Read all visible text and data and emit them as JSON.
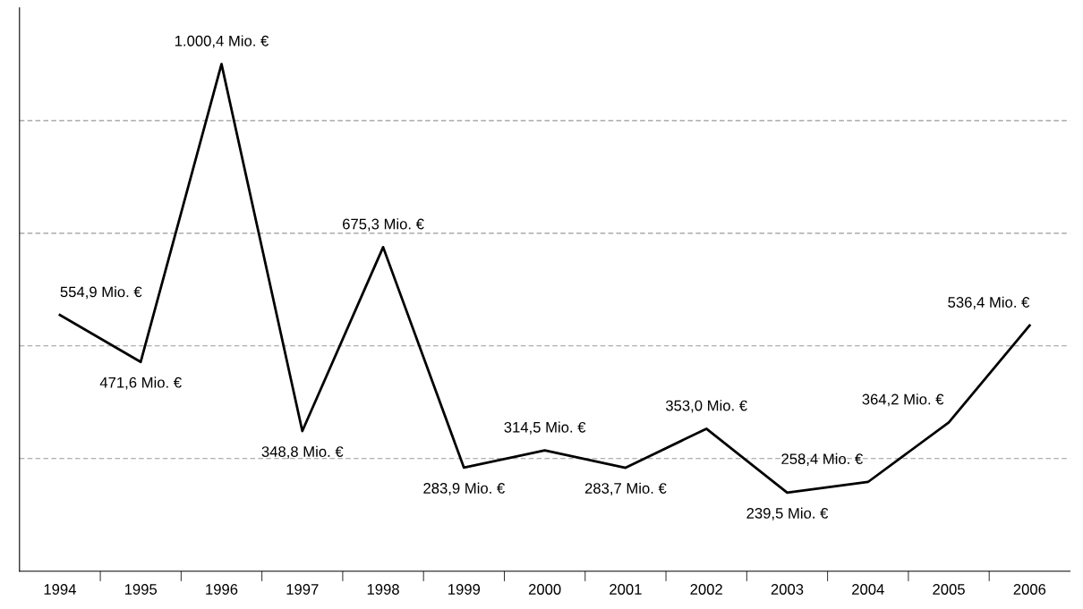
{
  "chart_data": {
    "type": "line",
    "categories": [
      "1994",
      "1995",
      "1996",
      "1997",
      "1998",
      "1999",
      "2000",
      "2001",
      "2002",
      "2003",
      "2004",
      "2005",
      "2006"
    ],
    "series": [
      {
        "color": "#000000",
        "values": [
          554.9,
          471.6,
          1000.4,
          348.8,
          675.3,
          283.9,
          314.5,
          283.7,
          353.0,
          239.5,
          258.4,
          364.2,
          536.4
        ],
        "value_labels": [
          "554,9 Mio. €",
          "471,6 Mio. €",
          "1.000,4 Mio. €",
          "348,8 Mio. €",
          "675,3 Mio. €",
          "283,9 Mio. €",
          "314,5 Mio. €",
          "283,7 Mio. €",
          "353,0 Mio. €",
          "239,5 Mio. €",
          "258,4 Mio. €",
          "364,2 Mio. €",
          "536,4 Mio. €"
        ]
      }
    ],
    "ylim": [
      100,
      1100
    ],
    "yticks": [
      {
        "value": 300,
        "label": null
      },
      {
        "value": 500,
        "label": null
      },
      {
        "value": 700,
        "label": null
      },
      {
        "value": 900,
        "label": null
      }
    ],
    "grid": "y",
    "tick_labels": "x",
    "marker": "none",
    "line_style": "solid",
    "legend": false
  }
}
